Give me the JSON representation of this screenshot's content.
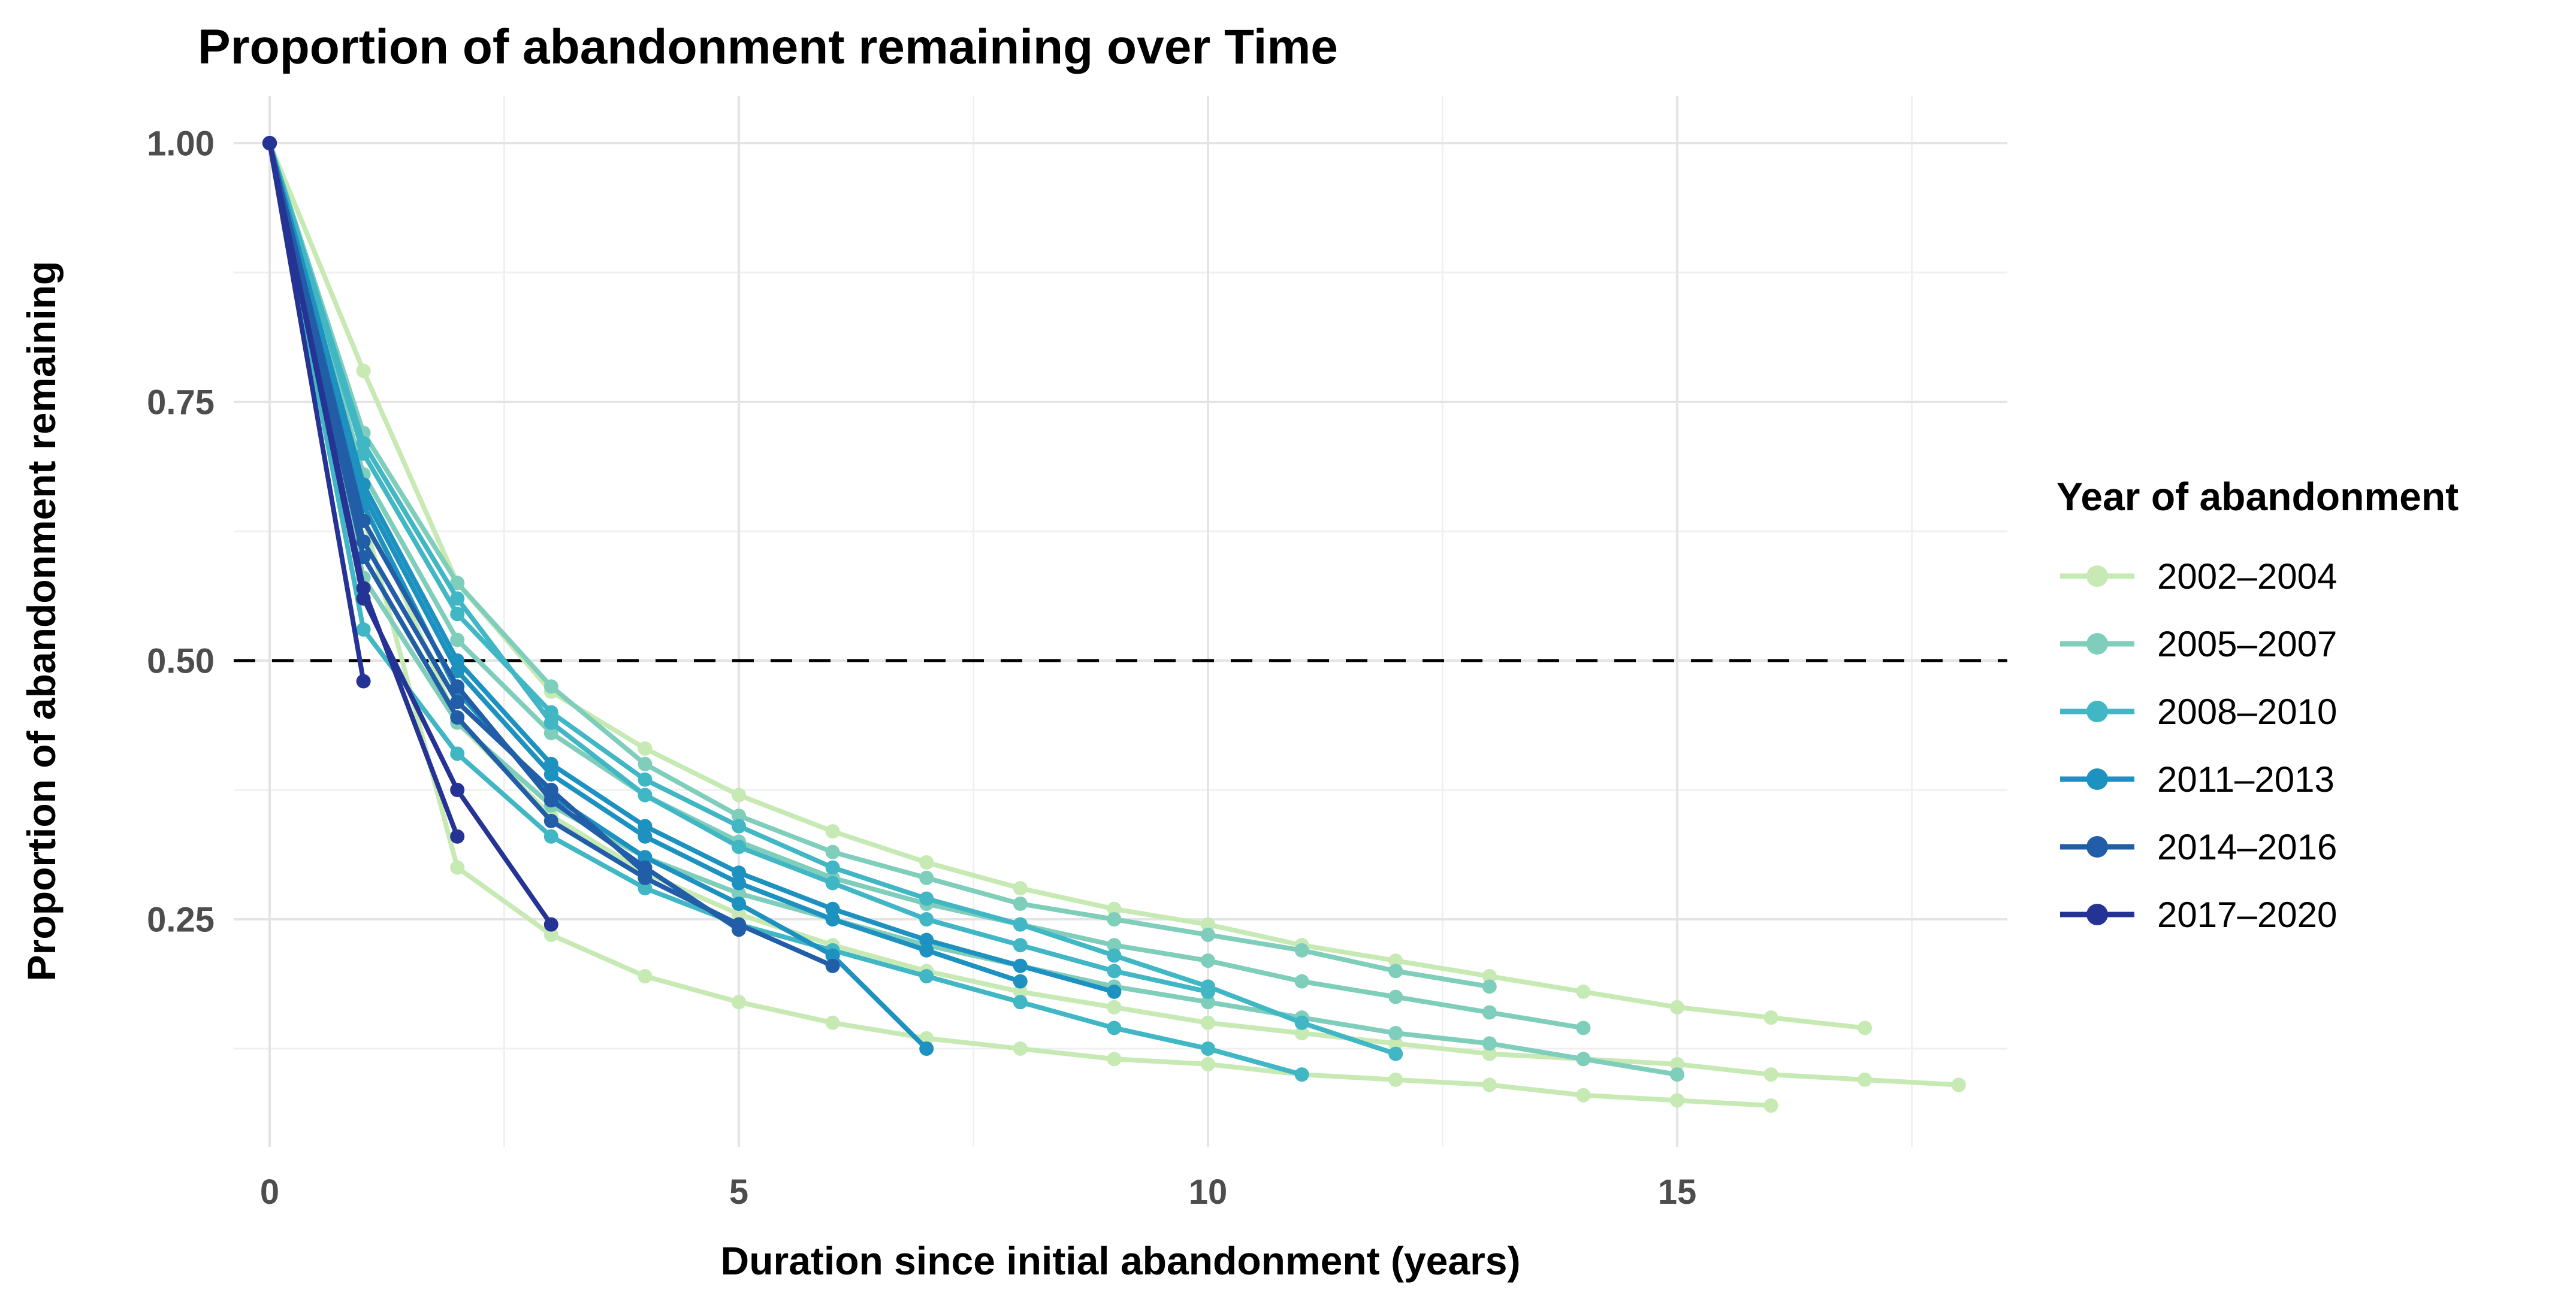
{
  "title": "Proportion of abandonment remaining over Time",
  "x_axis": {
    "label": "Duration since initial abandonment (years)",
    "tick_values": [
      0,
      5,
      10,
      15
    ],
    "tick_labels": [
      "0",
      "5",
      "10",
      "15"
    ],
    "minor_gridlines": [
      2.5,
      7.5,
      12.5,
      17.5
    ],
    "range": [
      -0.45,
      18.5
    ]
  },
  "y_axis": {
    "label": "Proportion of abandonment remaining",
    "tick_values": [
      0.25,
      0.5,
      0.75,
      1.0
    ],
    "tick_labels": [
      "0.25",
      "0.50",
      "0.75",
      "1.00"
    ],
    "minor_gridlines": [
      0.125,
      0.375,
      0.625,
      0.875
    ],
    "range": [
      0.03,
      1.046
    ]
  },
  "reference_line": {
    "y": 0.5,
    "label": "0.50",
    "style": "dashed",
    "color": "#000000"
  },
  "legend": {
    "title": "Year of abandonment",
    "position": "right",
    "items": [
      {
        "label": "2002–2004",
        "color": "#c7e9b4"
      },
      {
        "label": "2005–2007",
        "color": "#7fcdbb"
      },
      {
        "label": "2008–2010",
        "color": "#41b6c4"
      },
      {
        "label": "2011–2013",
        "color": "#1d91c0"
      },
      {
        "label": "2014–2016",
        "color": "#225ea8"
      },
      {
        "label": "2017–2020",
        "color": "#253494"
      }
    ]
  },
  "chart_data": {
    "type": "line",
    "title": "Proportion of abandonment remaining over Time",
    "xlabel": "Duration since initial abandonment (years)",
    "ylabel": "Proportion of abandonment remaining",
    "xlim": [
      -0.45,
      18.5
    ],
    "ylim": [
      0.03,
      1.046
    ],
    "grid": "on",
    "legend_position": "right",
    "x_rule": "x values are integer durations 0,1,2,... matching each y array index",
    "series": [
      {
        "year": "2002",
        "group": "2002–2004",
        "color": "#c7e9b4",
        "y": [
          1.0,
          0.655,
          0.44,
          0.35,
          0.295,
          0.255,
          0.225,
          0.2,
          0.18,
          0.165,
          0.15,
          0.14,
          0.13,
          0.12,
          0.115,
          0.11,
          0.1,
          0.095,
          0.09
        ]
      },
      {
        "year": "2003",
        "group": "2002–2004",
        "color": "#c7e9b4",
        "y": [
          1.0,
          0.78,
          0.575,
          0.47,
          0.415,
          0.37,
          0.335,
          0.305,
          0.28,
          0.26,
          0.245,
          0.225,
          0.21,
          0.195,
          0.18,
          0.165,
          0.155,
          0.145
        ]
      },
      {
        "year": "2004",
        "group": "2002–2004",
        "color": "#c7e9b4",
        "y": [
          1.0,
          0.64,
          0.3,
          0.235,
          0.195,
          0.17,
          0.15,
          0.135,
          0.125,
          0.115,
          0.11,
          0.1,
          0.095,
          0.09,
          0.08,
          0.075,
          0.07
        ]
      },
      {
        "year": "2005",
        "group": "2005–2007",
        "color": "#7fcdbb",
        "y": [
          1.0,
          0.58,
          0.44,
          0.36,
          0.31,
          0.275,
          0.25,
          0.225,
          0.205,
          0.185,
          0.17,
          0.155,
          0.14,
          0.13,
          0.115,
          0.1
        ]
      },
      {
        "year": "2006",
        "group": "2005–2007",
        "color": "#7fcdbb",
        "y": [
          1.0,
          0.68,
          0.52,
          0.43,
          0.37,
          0.325,
          0.29,
          0.265,
          0.245,
          0.225,
          0.21,
          0.19,
          0.175,
          0.16,
          0.145
        ]
      },
      {
        "year": "2007",
        "group": "2005–2007",
        "color": "#7fcdbb",
        "y": [
          1.0,
          0.72,
          0.575,
          0.475,
          0.4,
          0.35,
          0.315,
          0.29,
          0.265,
          0.25,
          0.235,
          0.22,
          0.2,
          0.185
        ]
      },
      {
        "year": "2008",
        "group": "2008–2010",
        "color": "#41b6c4",
        "y": [
          1.0,
          0.7,
          0.545,
          0.45,
          0.385,
          0.34,
          0.3,
          0.27,
          0.245,
          0.215,
          0.185,
          0.15,
          0.12
        ]
      },
      {
        "year": "2009",
        "group": "2008–2010",
        "color": "#41b6c4",
        "y": [
          1.0,
          0.53,
          0.41,
          0.33,
          0.28,
          0.245,
          0.22,
          0.195,
          0.17,
          0.145,
          0.125,
          0.1
        ]
      },
      {
        "year": "2010",
        "group": "2008–2010",
        "color": "#41b6c4",
        "y": [
          1.0,
          0.71,
          0.56,
          0.44,
          0.37,
          0.32,
          0.285,
          0.25,
          0.225,
          0.2,
          0.18
        ]
      },
      {
        "year": "2011",
        "group": "2011–2013",
        "color": "#1d91c0",
        "y": [
          1.0,
          0.67,
          0.5,
          0.4,
          0.34,
          0.295,
          0.26,
          0.23,
          0.205,
          0.18
        ]
      },
      {
        "year": "2012",
        "group": "2011–2013",
        "color": "#1d91c0",
        "y": [
          1.0,
          0.66,
          0.49,
          0.39,
          0.33,
          0.285,
          0.25,
          0.22,
          0.19
        ]
      },
      {
        "year": "2013",
        "group": "2011–2013",
        "color": "#1d91c0",
        "y": [
          1.0,
          0.65,
          0.47,
          0.37,
          0.31,
          0.265,
          0.215,
          0.125
        ]
      },
      {
        "year": "2014",
        "group": "2014–2016",
        "color": "#225ea8",
        "y": [
          1.0,
          0.6,
          0.445,
          0.345,
          0.29,
          0.245,
          0.205
        ]
      },
      {
        "year": "2015",
        "group": "2014–2016",
        "color": "#225ea8",
        "y": [
          1.0,
          0.635,
          0.475,
          0.365,
          0.3,
          0.24
        ]
      },
      {
        "year": "2016",
        "group": "2014–2016",
        "color": "#225ea8",
        "y": [
          1.0,
          0.615,
          0.46,
          0.375,
          0.295
        ]
      },
      {
        "year": "2017",
        "group": "2017–2020",
        "color": "#253494",
        "y": [
          1.0,
          0.56,
          0.375,
          0.245
        ]
      },
      {
        "year": "2018",
        "group": "2017–2020",
        "color": "#253494",
        "y": [
          1.0,
          0.57,
          0.33
        ]
      },
      {
        "year": "2019",
        "group": "2017–2020",
        "color": "#253494",
        "y": [
          1.0,
          0.48
        ]
      }
    ]
  }
}
